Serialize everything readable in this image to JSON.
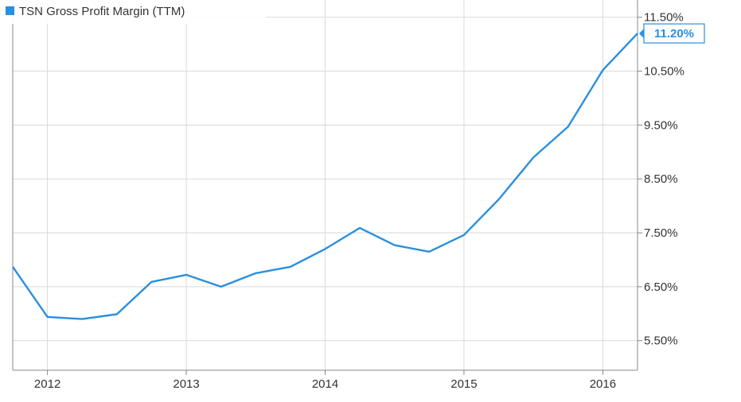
{
  "chart_data": {
    "type": "line",
    "legend": {
      "label": "TSN Gross Profit Margin (TTM)",
      "placement": "top-left"
    },
    "colors": {
      "series": "#2a8fe0",
      "grid": "#d9d9d9",
      "frame": "#888888",
      "last_label_border": "#2a8fe0"
    },
    "ylim": [
      4.95,
      11.85
    ],
    "y_ticks": [
      {
        "value": 5.5,
        "label": "5.50%"
      },
      {
        "value": 6.5,
        "label": "6.50%"
      },
      {
        "value": 7.5,
        "label": "7.50%"
      },
      {
        "value": 8.5,
        "label": "8.50%"
      },
      {
        "value": 9.5,
        "label": "9.50%"
      },
      {
        "value": 10.5,
        "label": "10.50%"
      },
      {
        "value": 11.5,
        "label": "11.50%"
      }
    ],
    "xlim": [
      2011.75,
      2016.25
    ],
    "x_ticks": [
      {
        "value": 2012,
        "label": "2012"
      },
      {
        "value": 2013,
        "label": "2013"
      },
      {
        "value": 2014,
        "label": "2014"
      },
      {
        "value": 2015,
        "label": "2015"
      },
      {
        "value": 2016,
        "label": "2016"
      }
    ],
    "grid": true,
    "series": [
      {
        "name": "TSN Gross Profit Margin (TTM)",
        "x": [
          2011.75,
          2012.0,
          2012.25,
          2012.5,
          2012.75,
          2013.0,
          2013.25,
          2013.5,
          2013.75,
          2014.0,
          2014.25,
          2014.5,
          2014.75,
          2015.0,
          2015.25,
          2015.5,
          2015.75,
          2016.0,
          2016.25
        ],
        "y": [
          6.87,
          5.94,
          5.9,
          5.99,
          6.59,
          6.72,
          6.5,
          6.75,
          6.87,
          7.2,
          7.59,
          7.27,
          7.15,
          7.46,
          8.12,
          8.9,
          9.47,
          10.52,
          11.2
        ]
      }
    ],
    "last_value_label": "11.20%"
  }
}
